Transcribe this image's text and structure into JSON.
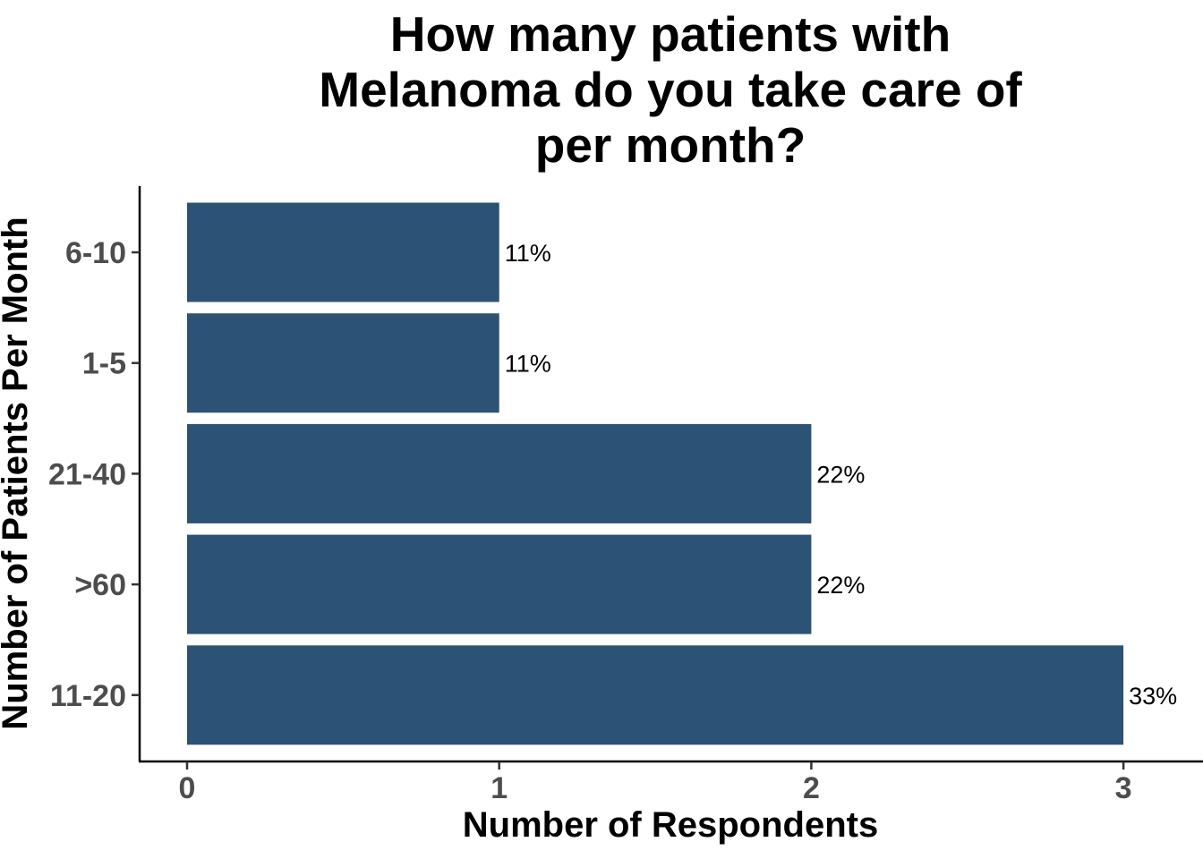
{
  "chart_data": {
    "type": "bar",
    "orientation": "horizontal",
    "title_lines": [
      "How many patients with",
      "Melanoma do you take care of",
      "per month?"
    ],
    "xlabel": "Number of Respondents",
    "ylabel": "Number of Patients Per Month",
    "categories": [
      "6-10",
      "1-5",
      "21-40",
      ">60",
      "11-20"
    ],
    "values": [
      1,
      1,
      2,
      2,
      3
    ],
    "data_labels": [
      "11%",
      "11%",
      "22%",
      "22%",
      "33%"
    ],
    "x_ticks": [
      "0",
      "1",
      "2",
      "3"
    ],
    "xlim": [
      0,
      3.1
    ],
    "bar_color": "#2c5276",
    "grid": false,
    "legend": "none"
  }
}
